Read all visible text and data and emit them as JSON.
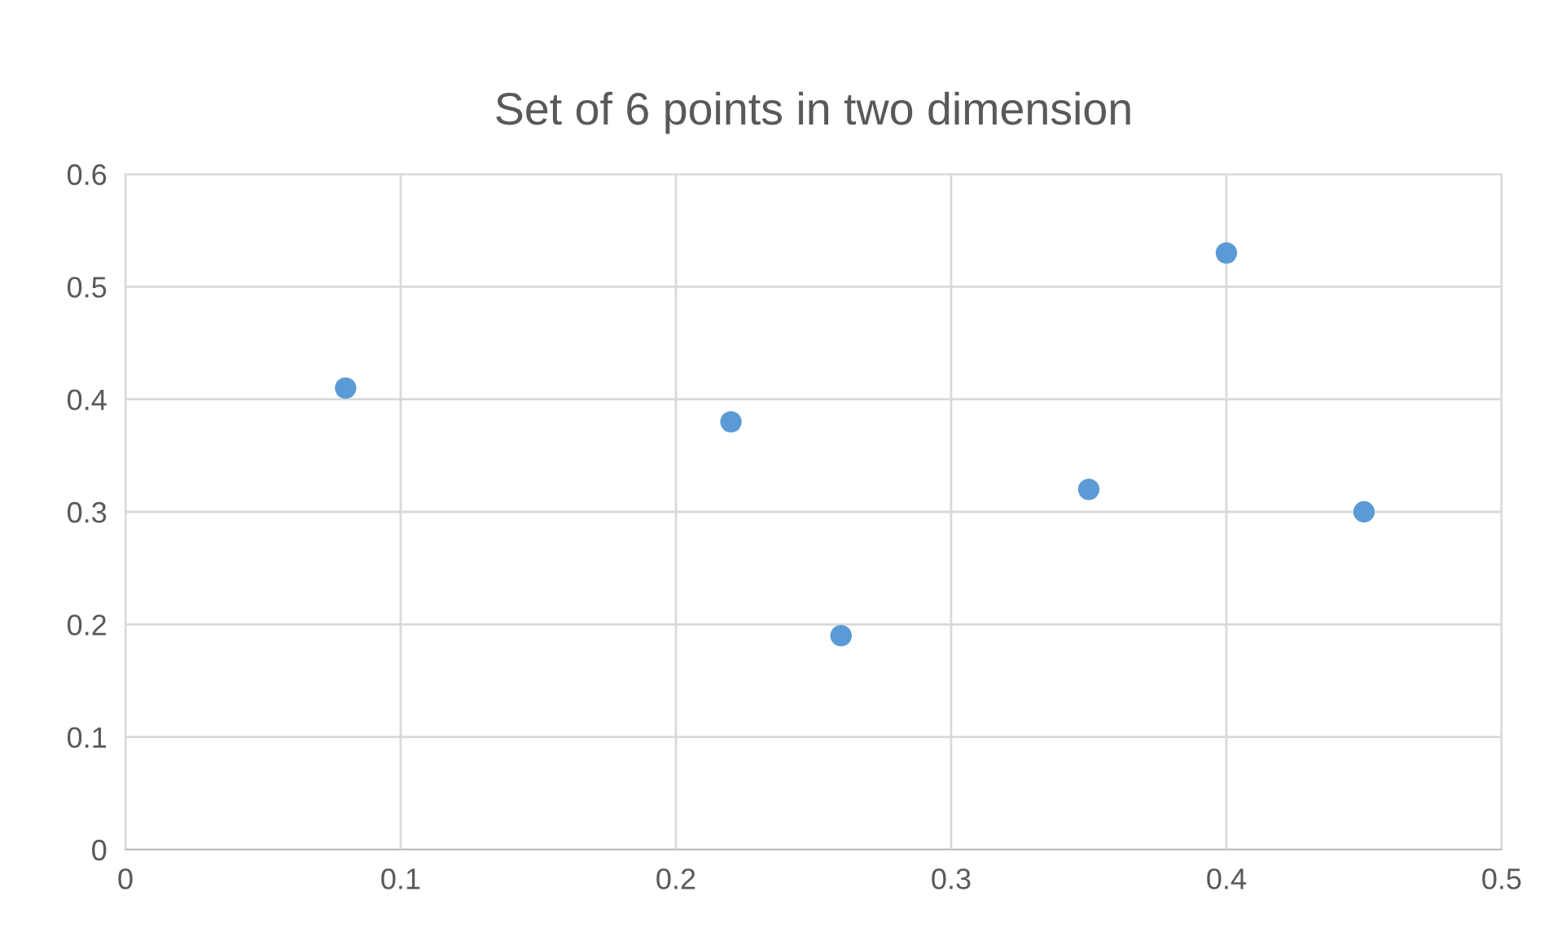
{
  "chart_data": {
    "type": "scatter",
    "title": "Set of 6 points in two dimension",
    "x": [
      0.08,
      0.22,
      0.26,
      0.35,
      0.4,
      0.45
    ],
    "values": [
      0.41,
      0.38,
      0.19,
      0.32,
      0.53,
      0.3
    ],
    "color": "#5b9bd5",
    "marker": "circle",
    "xlim": [
      0,
      0.5
    ],
    "xticks": [
      0,
      0.1,
      0.2,
      0.3,
      0.4,
      0.5
    ],
    "ylim": [
      0,
      0.6
    ],
    "yticks": [
      0,
      0.1,
      0.2,
      0.3,
      0.4,
      0.5,
      0.6
    ],
    "grid": true,
    "legend": false
  }
}
